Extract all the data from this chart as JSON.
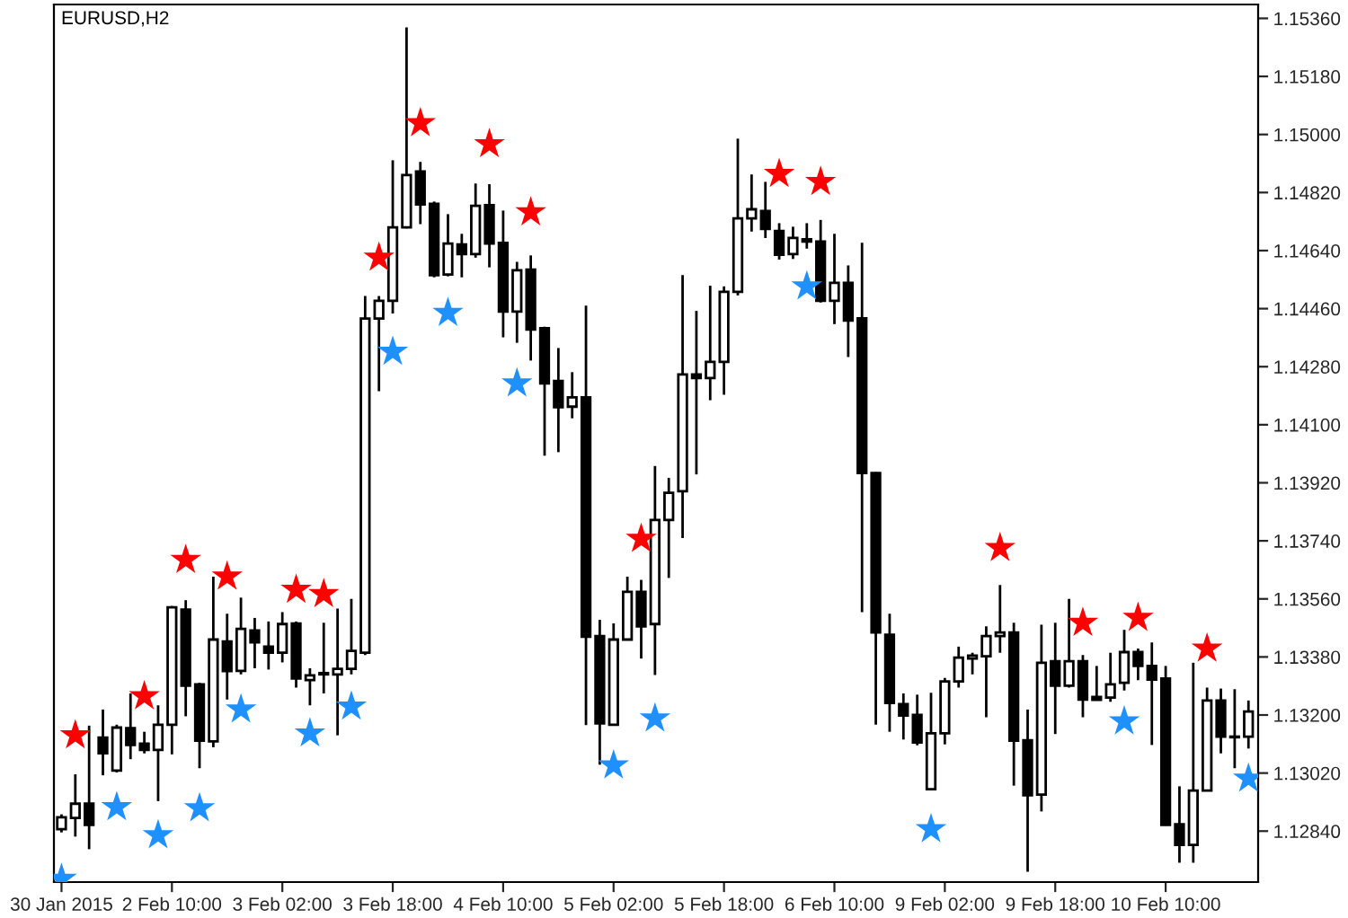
{
  "chart_data": {
    "type": "candlestick",
    "title": "EURUSD,H2",
    "categories": [
      "30 Jan 2015",
      null,
      null,
      null,
      null,
      null,
      null,
      null,
      "2 Feb 10:00",
      null,
      null,
      null,
      null,
      null,
      null,
      null,
      "3 Feb 02:00",
      null,
      null,
      null,
      null,
      null,
      null,
      null,
      "3 Feb 18:00",
      null,
      null,
      null,
      null,
      null,
      null,
      null,
      "4 Feb 10:00",
      null,
      null,
      null,
      null,
      null,
      null,
      null,
      "5 Feb 02:00",
      null,
      null,
      null,
      null,
      null,
      null,
      null,
      "5 Feb 18:00",
      null,
      null,
      null,
      null,
      null,
      null,
      null,
      "6 Feb 10:00",
      null,
      null,
      null,
      null,
      null,
      null,
      null,
      "9 Feb 02:00",
      null,
      null,
      null,
      null,
      null,
      null,
      null,
      "9 Feb 18:00",
      null,
      null,
      null,
      null,
      null,
      null,
      null,
      "10 Feb 10:00",
      null,
      null,
      null,
      null,
      null,
      null
    ],
    "ohlc": [
      [
        1.12846,
        1.12892,
        1.12836,
        1.12883
      ],
      [
        1.12881,
        1.13016,
        1.12823,
        1.12925
      ],
      [
        1.12925,
        1.13167,
        1.12784,
        1.12859
      ],
      [
        1.1313,
        1.13217,
        1.13013,
        1.13081
      ],
      [
        1.13028,
        1.1317,
        1.13022,
        1.13161
      ],
      [
        1.13159,
        1.13267,
        1.13063,
        1.13107
      ],
      [
        1.13111,
        1.13148,
        1.13081,
        1.13092
      ],
      [
        1.13092,
        1.1323,
        1.12933,
        1.1317
      ],
      [
        1.1317,
        1.13538,
        1.13078,
        1.13534
      ],
      [
        1.13527,
        1.13556,
        1.13196,
        1.13291
      ],
      [
        1.13295,
        1.133,
        1.13035,
        1.1312
      ],
      [
        1.13118,
        1.13629,
        1.131,
        1.13434
      ],
      [
        1.13428,
        1.13514,
        1.13248,
        1.13336
      ],
      [
        1.13337,
        1.13564,
        1.13326,
        1.13467
      ],
      [
        1.13462,
        1.13501,
        1.13345,
        1.13425
      ],
      [
        1.13412,
        1.1349,
        1.13341,
        1.13393
      ],
      [
        1.13393,
        1.13519,
        1.13363,
        1.13482
      ],
      [
        1.13484,
        1.1349,
        1.13285,
        1.13313
      ],
      [
        1.13308,
        1.13345,
        1.1323,
        1.13323
      ],
      [
        1.13326,
        1.13486,
        1.13267,
        1.1333
      ],
      [
        1.13326,
        1.1353,
        1.13137,
        1.13343
      ],
      [
        1.13343,
        1.1356,
        1.13326,
        1.13399
      ],
      [
        1.13393,
        1.14499,
        1.13386,
        1.14429
      ],
      [
        1.14429,
        1.14499,
        1.14204,
        1.14484
      ],
      [
        1.14484,
        1.1492,
        1.14445,
        1.14712
      ],
      [
        1.14712,
        1.15332,
        1.14709,
        1.14874
      ],
      [
        1.14885,
        1.14915,
        1.14722,
        1.14783
      ],
      [
        1.14785,
        1.14792,
        1.14557,
        1.14564
      ],
      [
        1.14566,
        1.14753,
        1.1456,
        1.14662
      ],
      [
        1.14659,
        1.14692,
        1.14557,
        1.14629
      ],
      [
        1.14629,
        1.14848,
        1.14618,
        1.14779
      ],
      [
        1.14781,
        1.14846,
        1.14588,
        1.14662
      ],
      [
        1.14664,
        1.14764,
        1.14371,
        1.14451
      ],
      [
        1.14451,
        1.14605,
        1.14354,
        1.14579
      ],
      [
        1.14581,
        1.14625,
        1.14299,
        1.14395
      ],
      [
        1.14399,
        1.14404,
        1.14004,
        1.14228
      ],
      [
        1.14236,
        1.14338,
        1.14015,
        1.14154
      ],
      [
        1.14156,
        1.14263,
        1.1412,
        1.14185
      ],
      [
        1.14185,
        1.14469,
        1.13169,
        1.13443
      ],
      [
        1.13445,
        1.13495,
        1.13046,
        1.13174
      ],
      [
        1.1317,
        1.13484,
        1.13169,
        1.13434
      ],
      [
        1.13434,
        1.13629,
        1.13432,
        1.13582
      ],
      [
        1.13582,
        1.13619,
        1.13375,
        1.13475
      ],
      [
        1.13482,
        1.13972,
        1.13324,
        1.13805
      ],
      [
        1.13805,
        1.13935,
        1.13625,
        1.13889
      ],
      [
        1.13894,
        1.14564,
        1.13749,
        1.14256
      ],
      [
        1.14256,
        1.14453,
        1.13946,
        1.14245
      ],
      [
        1.14245,
        1.14531,
        1.14176,
        1.14295
      ],
      [
        1.14295,
        1.14529,
        1.14193,
        1.14512
      ],
      [
        1.14512,
        1.14987,
        1.14501,
        1.1474
      ],
      [
        1.1474,
        1.14876,
        1.14699,
        1.14768
      ],
      [
        1.14763,
        1.14853,
        1.14679,
        1.14707
      ],
      [
        1.14701,
        1.14725,
        1.14612,
        1.14627
      ],
      [
        1.14629,
        1.14714,
        1.14614,
        1.14679
      ],
      [
        1.14675,
        1.14725,
        1.14646,
        1.14668
      ],
      [
        1.14668,
        1.14735,
        1.14479,
        1.14484
      ],
      [
        1.14484,
        1.14692,
        1.14412,
        1.1454
      ],
      [
        1.1454,
        1.14594,
        1.1431,
        1.14423
      ],
      [
        1.1443,
        1.14664,
        1.13519,
        1.1395
      ],
      [
        1.1395,
        1.13953,
        1.1317,
        1.13456
      ],
      [
        1.13449,
        1.13514,
        1.13148,
        1.13237
      ],
      [
        1.13234,
        1.13267,
        1.13124,
        1.13198
      ],
      [
        1.132,
        1.13263,
        1.13106,
        1.13115
      ],
      [
        1.1297,
        1.13269,
        1.12966,
        1.13143
      ],
      [
        1.13143,
        1.13315,
        1.13109,
        1.13304
      ],
      [
        1.13304,
        1.13412,
        1.13285,
        1.13378
      ],
      [
        1.13375,
        1.13393,
        1.13326,
        1.13384
      ],
      [
        1.13382,
        1.13475,
        1.13193,
        1.13445
      ],
      [
        1.13445,
        1.13603,
        1.13393,
        1.13456
      ],
      [
        1.13456,
        1.13486,
        1.12981,
        1.1312
      ],
      [
        1.13122,
        1.13217,
        1.12714,
        1.12951
      ],
      [
        1.12953,
        1.1348,
        1.12901,
        1.13362
      ],
      [
        1.13367,
        1.13486,
        1.13141,
        1.13291
      ],
      [
        1.13291,
        1.1356,
        1.13285,
        1.13367
      ],
      [
        1.13367,
        1.13386,
        1.13193,
        1.13248
      ],
      [
        1.13256,
        1.13352,
        1.13245,
        1.13247
      ],
      [
        1.13254,
        1.13393,
        1.13241,
        1.13295
      ],
      [
        1.133,
        1.13464,
        1.13276,
        1.13395
      ],
      [
        1.13395,
        1.13406,
        1.13308,
        1.13352
      ],
      [
        1.13352,
        1.13425,
        1.13107,
        1.1331
      ],
      [
        1.13313,
        1.13352,
        1.12857,
        1.12859
      ],
      [
        1.12861,
        1.12979,
        1.12742,
        1.12797
      ],
      [
        1.12797,
        1.13362,
        1.12742,
        1.12966
      ],
      [
        1.12966,
        1.13285,
        1.12964,
        1.13245
      ],
      [
        1.13245,
        1.13282,
        1.13081,
        1.13133
      ],
      [
        1.13133,
        1.1328,
        1.13035,
        1.13131
      ],
      [
        1.13133,
        1.13245,
        1.13096,
        1.13211
      ]
    ],
    "series": [
      {
        "type": "scatter",
        "marker": "star",
        "color": "#ff0000",
        "values": [
          null,
          1.13137,
          null,
          null,
          null,
          null,
          1.13258,
          null,
          null,
          1.13681,
          null,
          null,
          1.13629,
          null,
          null,
          null,
          null,
          1.13588,
          null,
          1.13575,
          null,
          null,
          null,
          1.14618,
          null,
          null,
          1.15035,
          null,
          null,
          null,
          null,
          1.1497,
          null,
          null,
          1.14759,
          null,
          null,
          null,
          null,
          null,
          null,
          null,
          1.13746,
          null,
          null,
          null,
          null,
          null,
          null,
          null,
          null,
          null,
          1.14878,
          null,
          null,
          1.14853,
          null,
          null,
          null,
          null,
          null,
          null,
          null,
          null,
          null,
          null,
          null,
          null,
          1.13718,
          null,
          null,
          null,
          null,
          null,
          1.13486,
          null,
          null,
          null,
          1.13501,
          null,
          null,
          null,
          null,
          1.13406,
          null,
          null,
          null
        ]
      },
      {
        "type": "scatter",
        "marker": "star",
        "color": "#1e90ff",
        "values": [
          1.12692,
          null,
          null,
          null,
          1.12914,
          null,
          null,
          1.12827,
          null,
          null,
          1.12911,
          null,
          null,
          1.13217,
          null,
          null,
          null,
          null,
          1.13143,
          null,
          null,
          1.13226,
          null,
          null,
          1.14326,
          null,
          null,
          null,
          1.14447,
          null,
          null,
          null,
          null,
          1.14228,
          null,
          null,
          null,
          null,
          null,
          null,
          1.13044,
          null,
          null,
          1.13189,
          null,
          null,
          null,
          null,
          null,
          null,
          null,
          null,
          null,
          null,
          1.14529,
          null,
          null,
          null,
          null,
          null,
          null,
          null,
          null,
          1.12846,
          null,
          null,
          null,
          null,
          null,
          null,
          null,
          null,
          null,
          null,
          null,
          null,
          null,
          1.1318,
          null,
          null,
          null,
          null,
          null,
          null,
          null,
          null,
          1.13003
        ]
      }
    ],
    "ylim": [
      1.12682,
      1.15403
    ],
    "yticks": [
      {
        "value": 1.1536,
        "label": "1.15360"
      },
      {
        "value": 1.1518,
        "label": "1.15180"
      },
      {
        "value": 1.15,
        "label": "1.15000"
      },
      {
        "value": 1.1482,
        "label": "1.14820"
      },
      {
        "value": 1.1464,
        "label": "1.14640"
      },
      {
        "value": 1.1446,
        "label": "1.14460"
      },
      {
        "value": 1.1428,
        "label": "1.14280"
      },
      {
        "value": 1.141,
        "label": "1.14100"
      },
      {
        "value": 1.1392,
        "label": "1.13920"
      },
      {
        "value": 1.1374,
        "label": "1.13740"
      },
      {
        "value": 1.1356,
        "label": "1.13560"
      },
      {
        "value": 1.1338,
        "label": "1.13380"
      },
      {
        "value": 1.132,
        "label": "1.13200"
      },
      {
        "value": 1.1302,
        "label": "1.13020"
      },
      {
        "value": 1.1284,
        "label": "1.12840"
      }
    ]
  }
}
